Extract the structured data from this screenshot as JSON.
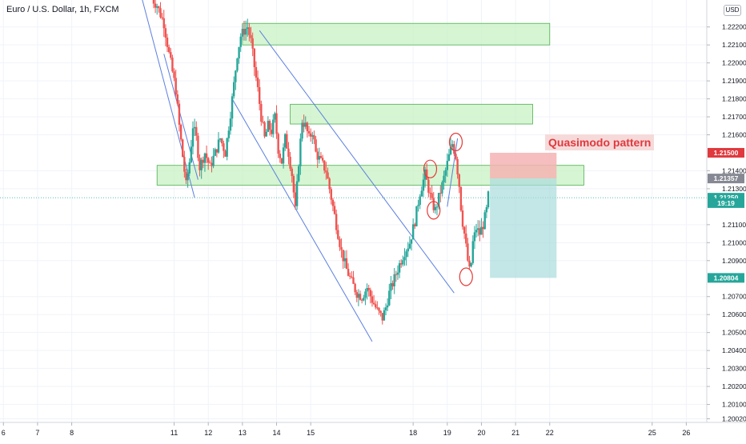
{
  "header": {
    "symbol_title": "Euro / U.S. Dollar, 1h, FXCM",
    "currency_button": "USD"
  },
  "annotations": {
    "pattern_label": "Quasimodo pattern"
  },
  "colors": {
    "up": "#26a69a",
    "down": "#ef5350",
    "grid": "#f0f3fa",
    "zone_fill": "#c8f2c3",
    "zone_stroke": "#4caf50",
    "trendline": "#5b7fe0",
    "marker": "#e53935",
    "stop_fill": "#f4b3b3",
    "target_fill": "#a9dcdc"
  },
  "chart_data": {
    "type": "candlestick",
    "instrument": "Euro / U.S. Dollar",
    "timeframe": "1h",
    "source": "FXCM",
    "ylim": [
      1.2,
      1.2235
    ],
    "x_range": [
      "6",
      "26"
    ],
    "y_ticks": [
      "1.22200",
      "1.22100",
      "1.22000",
      "1.21900",
      "1.21800",
      "1.21700",
      "1.21600",
      "1.21400",
      "1.21300",
      "1.21100",
      "1.21000",
      "1.20900",
      "1.20700",
      "1.20600",
      "1.20500",
      "1.20400",
      "1.20300",
      "1.20200",
      "1.20100",
      "1.20020"
    ],
    "x_ticks": [
      "6",
      "7",
      "8",
      "11",
      "12",
      "13",
      "14",
      "15",
      "18",
      "19",
      "20",
      "21",
      "22",
      "25",
      "26"
    ],
    "x_tick_pos": [
      6,
      7,
      8,
      11,
      12,
      13,
      14,
      15,
      18,
      19,
      20,
      21,
      22,
      25,
      26
    ],
    "price_labels": [
      {
        "text": "1.21500",
        "value": 1.215,
        "kind": "stop"
      },
      {
        "text": "1.21357",
        "value": 1.21357,
        "kind": "entry"
      },
      {
        "text": "1.21250",
        "value": 1.2125,
        "kind": "last"
      },
      {
        "text": "19:19",
        "value": 1.2122,
        "kind": "countdown"
      },
      {
        "text": "1.20804",
        "value": 1.20804,
        "kind": "target"
      }
    ],
    "last_price": 1.2125,
    "path": [
      [
        10.3,
        1.2237
      ],
      [
        10.5,
        1.2232
      ],
      [
        10.7,
        1.2222
      ],
      [
        10.85,
        1.2205
      ],
      [
        10.95,
        1.2195
      ],
      [
        11.05,
        1.2185
      ],
      [
        11.15,
        1.2165
      ],
      [
        11.25,
        1.2148
      ],
      [
        11.35,
        1.2132
      ],
      [
        11.45,
        1.2145
      ],
      [
        11.55,
        1.2165
      ],
      [
        11.65,
        1.2158
      ],
      [
        11.75,
        1.2142
      ],
      [
        11.9,
        1.215
      ],
      [
        12.05,
        1.2142
      ],
      [
        12.2,
        1.215
      ],
      [
        12.35,
        1.2158
      ],
      [
        12.5,
        1.215
      ],
      [
        12.65,
        1.2172
      ],
      [
        12.75,
        1.2188
      ],
      [
        12.85,
        1.2205
      ],
      [
        12.95,
        1.2215
      ],
      [
        13.05,
        1.2218
      ],
      [
        13.15,
        1.222
      ],
      [
        13.25,
        1.2212
      ],
      [
        13.35,
        1.2198
      ],
      [
        13.45,
        1.2185
      ],
      [
        13.55,
        1.217
      ],
      [
        13.65,
        1.2158
      ],
      [
        13.75,
        1.2165
      ],
      [
        13.85,
        1.2162
      ],
      [
        13.95,
        1.217
      ],
      [
        14.05,
        1.2152
      ],
      [
        14.15,
        1.2145
      ],
      [
        14.25,
        1.2158
      ],
      [
        14.35,
        1.215
      ],
      [
        14.45,
        1.2138
      ],
      [
        14.55,
        1.2118
      ],
      [
        14.65,
        1.2145
      ],
      [
        14.75,
        1.2168
      ],
      [
        14.85,
        1.2165
      ],
      [
        14.95,
        1.2158
      ],
      [
        15.05,
        1.2162
      ],
      [
        15.15,
        1.215
      ],
      [
        15.3,
        1.2145
      ],
      [
        15.45,
        1.214
      ],
      [
        15.6,
        1.2125
      ],
      [
        15.75,
        1.211
      ],
      [
        15.9,
        1.2095
      ],
      [
        16.05,
        1.2085
      ],
      [
        16.2,
        1.2078
      ],
      [
        16.35,
        1.2072
      ],
      [
        16.5,
        1.207
      ],
      [
        16.65,
        1.2075
      ],
      [
        16.8,
        1.2068
      ],
      [
        16.95,
        1.2062
      ],
      [
        17.1,
        1.2058
      ],
      [
        17.2,
        1.2064
      ],
      [
        17.3,
        1.2072
      ],
      [
        17.45,
        1.208
      ],
      [
        17.6,
        1.2088
      ],
      [
        17.75,
        1.2095
      ],
      [
        17.9,
        1.21
      ],
      [
        18.05,
        1.2112
      ],
      [
        18.2,
        1.2128
      ],
      [
        18.35,
        1.2138
      ],
      [
        18.45,
        1.213
      ],
      [
        18.55,
        1.2122
      ],
      [
        18.65,
        1.2118
      ],
      [
        18.75,
        1.2125
      ],
      [
        18.85,
        1.2132
      ],
      [
        18.95,
        1.214
      ],
      [
        19.05,
        1.2148
      ],
      [
        19.15,
        1.2155
      ],
      [
        19.25,
        1.2148
      ],
      [
        19.35,
        1.2132
      ],
      [
        19.42,
        1.2115
      ],
      [
        19.5,
        1.2105
      ],
      [
        19.6,
        1.209
      ],
      [
        19.67,
        1.2082
      ],
      [
        19.75,
        1.21
      ],
      [
        19.85,
        1.2108
      ],
      [
        19.95,
        1.2105
      ],
      [
        20.05,
        1.211
      ],
      [
        20.15,
        1.2118
      ],
      [
        20.2,
        1.2126
      ]
    ],
    "supply_demand_zones": [
      {
        "x_start": 13.0,
        "x_end": 22.0,
        "y_low": 1.221,
        "y_high": 1.2222
      },
      {
        "x_start": 14.4,
        "x_end": 21.5,
        "y_low": 1.2166,
        "y_high": 1.2177
      },
      {
        "x_start": 10.5,
        "x_end": 23.0,
        "y_low": 1.2132,
        "y_high": 1.2143
      }
    ],
    "trendlines": [
      {
        "from": [
          10.0,
          1.224
        ],
        "to": [
          11.6,
          1.2125
        ]
      },
      {
        "from": [
          10.7,
          1.2205
        ],
        "to": [
          11.7,
          1.2135
        ]
      },
      {
        "from": [
          12.7,
          1.218
        ],
        "to": [
          16.8,
          1.2045
        ]
      },
      {
        "from": [
          13.5,
          1.2218
        ],
        "to": [
          19.2,
          1.2072
        ]
      },
      {
        "from": [
          19.0,
          1.212
        ],
        "to": [
          19.3,
          1.2158
        ]
      }
    ],
    "circle_markers": [
      {
        "x": 18.5,
        "y": 1.2141
      },
      {
        "x": 18.6,
        "y": 1.2118
      },
      {
        "x": 19.25,
        "y": 1.2156
      },
      {
        "x": 19.55,
        "y": 1.2081
      }
    ],
    "long_short_position": {
      "x_start": 20.25,
      "x_end": 22.2,
      "entry": 1.21357,
      "stop": 1.215,
      "target": 1.20804
    }
  }
}
